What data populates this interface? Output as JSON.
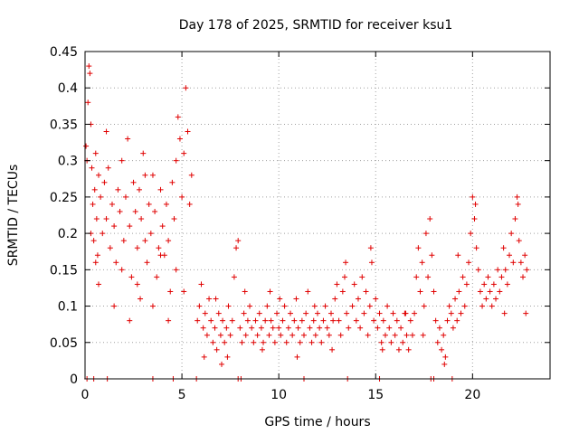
{
  "chart_data": {
    "type": "scatter",
    "title": "Day 178 of 2025, SRMTID for receiver ksu1",
    "xlabel": "GPS time / hours",
    "ylabel": "SRMTID / TECUs",
    "xlim": [
      0,
      24
    ],
    "ylim": [
      0,
      0.45
    ],
    "x_ticks": [
      "0",
      "5",
      "10",
      "15",
      "20"
    ],
    "y_ticks": [
      "0",
      "0.05",
      "0.1",
      "0.15",
      "0.2",
      "0.25",
      "0.3",
      "0.35",
      "0.4",
      "0.45"
    ],
    "grid": true,
    "marker": "+",
    "color": "#e00000",
    "series": [
      {
        "name": "SRMTID",
        "points": [
          [
            0.05,
            0.32
          ],
          [
            0.1,
            0.3
          ],
          [
            0.15,
            0.38
          ],
          [
            0.2,
            0.43
          ],
          [
            0.25,
            0.42
          ],
          [
            0.3,
            0.35
          ],
          [
            0.35,
            0.29
          ],
          [
            0.4,
            0.24
          ],
          [
            0.45,
            0.19
          ],
          [
            0.5,
            0.26
          ],
          [
            0.55,
            0.31
          ],
          [
            0.6,
            0.22
          ],
          [
            0.65,
            0.17
          ],
          [
            0.7,
            0.28
          ],
          [
            0.8,
            0.25
          ],
          [
            0.9,
            0.2
          ],
          [
            1.0,
            0.27
          ],
          [
            1.1,
            0.22
          ],
          [
            1.2,
            0.29
          ],
          [
            1.3,
            0.18
          ],
          [
            1.4,
            0.24
          ],
          [
            1.5,
            0.21
          ],
          [
            1.6,
            0.16
          ],
          [
            1.7,
            0.26
          ],
          [
            1.8,
            0.23
          ],
          [
            1.9,
            0.3
          ],
          [
            2.0,
            0.19
          ],
          [
            2.1,
            0.25
          ],
          [
            2.2,
            0.33
          ],
          [
            2.3,
            0.21
          ],
          [
            2.4,
            0.14
          ],
          [
            2.5,
            0.27
          ],
          [
            2.6,
            0.23
          ],
          [
            2.7,
            0.18
          ],
          [
            2.8,
            0.26
          ],
          [
            2.9,
            0.22
          ],
          [
            3.0,
            0.31
          ],
          [
            3.1,
            0.19
          ],
          [
            3.2,
            0.16
          ],
          [
            3.3,
            0.24
          ],
          [
            3.4,
            0.2
          ],
          [
            3.5,
            0.28
          ],
          [
            3.6,
            0.23
          ],
          [
            3.7,
            0.14
          ],
          [
            3.8,
            0.18
          ],
          [
            3.9,
            0.26
          ],
          [
            4.0,
            0.21
          ],
          [
            4.1,
            0.17
          ],
          [
            4.2,
            0.24
          ],
          [
            4.3,
            0.19
          ],
          [
            4.4,
            0.12
          ],
          [
            4.5,
            0.27
          ],
          [
            4.6,
            0.22
          ],
          [
            4.7,
            0.3
          ],
          [
            4.8,
            0.36
          ],
          [
            4.9,
            0.33
          ],
          [
            5.0,
            0.25
          ],
          [
            5.1,
            0.31
          ],
          [
            5.2,
            0.4
          ],
          [
            5.3,
            0.34
          ],
          [
            5.4,
            0.24
          ],
          [
            5.5,
            0.28
          ],
          [
            0.3,
            0.2
          ],
          [
            0.7,
            0.13
          ],
          [
            1.1,
            0.34
          ],
          [
            1.5,
            0.1
          ],
          [
            1.9,
            0.15
          ],
          [
            2.3,
            0.08
          ],
          [
            2.7,
            0.13
          ],
          [
            3.1,
            0.28
          ],
          [
            3.5,
            0.1
          ],
          [
            3.9,
            0.17
          ],
          [
            4.3,
            0.08
          ],
          [
            4.7,
            0.15
          ],
          [
            5.1,
            0.12
          ],
          [
            0.55,
            0.16
          ],
          [
            2.85,
            0.11
          ],
          [
            5.8,
            0.08
          ],
          [
            5.9,
            0.1
          ],
          [
            6.0,
            0.13
          ],
          [
            6.1,
            0.07
          ],
          [
            6.2,
            0.09
          ],
          [
            6.3,
            0.06
          ],
          [
            6.4,
            0.11
          ],
          [
            6.5,
            0.08
          ],
          [
            6.6,
            0.05
          ],
          [
            6.7,
            0.07
          ],
          [
            6.8,
            0.04
          ],
          [
            6.9,
            0.09
          ],
          [
            7.0,
            0.06
          ],
          [
            7.1,
            0.08
          ],
          [
            7.2,
            0.05
          ],
          [
            7.3,
            0.07
          ],
          [
            7.4,
            0.1
          ],
          [
            7.5,
            0.06
          ],
          [
            7.6,
            0.08
          ],
          [
            7.7,
            0.14
          ],
          [
            7.8,
            0.18
          ],
          [
            7.9,
            0.19
          ],
          [
            8.0,
            0.07
          ],
          [
            8.1,
            0.05
          ],
          [
            8.2,
            0.09
          ],
          [
            8.3,
            0.06
          ],
          [
            8.4,
            0.08
          ],
          [
            8.5,
            0.1
          ],
          [
            8.6,
            0.07
          ],
          [
            8.7,
            0.05
          ],
          [
            8.8,
            0.08
          ],
          [
            8.9,
            0.06
          ],
          [
            9.0,
            0.09
          ],
          [
            9.1,
            0.07
          ],
          [
            9.2,
            0.05
          ],
          [
            9.3,
            0.08
          ],
          [
            9.4,
            0.1
          ],
          [
            9.5,
            0.06
          ],
          [
            9.6,
            0.08
          ],
          [
            9.7,
            0.07
          ],
          [
            9.8,
            0.05
          ],
          [
            9.9,
            0.09
          ],
          [
            10.0,
            0.07
          ],
          [
            10.1,
            0.06
          ],
          [
            10.2,
            0.08
          ],
          [
            10.3,
            0.1
          ],
          [
            10.4,
            0.05
          ],
          [
            10.5,
            0.07
          ],
          [
            10.6,
            0.09
          ],
          [
            10.7,
            0.06
          ],
          [
            10.8,
            0.08
          ],
          [
            10.9,
            0.11
          ],
          [
            11.0,
            0.07
          ],
          [
            11.1,
            0.05
          ],
          [
            11.2,
            0.08
          ],
          [
            11.3,
            0.06
          ],
          [
            11.4,
            0.09
          ],
          [
            11.5,
            0.12
          ],
          [
            11.6,
            0.07
          ],
          [
            11.7,
            0.05
          ],
          [
            11.8,
            0.08
          ],
          [
            11.9,
            0.06
          ],
          [
            12.0,
            0.09
          ],
          [
            12.1,
            0.07
          ],
          [
            12.2,
            0.05
          ],
          [
            12.3,
            0.08
          ],
          [
            12.4,
            0.1
          ],
          [
            12.5,
            0.07
          ],
          [
            12.6,
            0.06
          ],
          [
            12.7,
            0.09
          ],
          [
            12.8,
            0.08
          ],
          [
            12.9,
            0.11
          ],
          [
            13.0,
            0.13
          ],
          [
            13.1,
            0.08
          ],
          [
            13.2,
            0.06
          ],
          [
            13.3,
            0.12
          ],
          [
            13.4,
            0.14
          ],
          [
            13.5,
            0.09
          ],
          [
            13.6,
            0.07
          ],
          [
            6.15,
            0.03
          ],
          [
            6.75,
            0.11
          ],
          [
            7.35,
            0.03
          ],
          [
            8.25,
            0.12
          ],
          [
            9.15,
            0.04
          ],
          [
            10.05,
            0.11
          ],
          [
            10.95,
            0.03
          ],
          [
            11.85,
            0.1
          ],
          [
            12.75,
            0.04
          ],
          [
            13.45,
            0.16
          ],
          [
            9.55,
            0.12
          ],
          [
            7.05,
            0.02
          ],
          [
            13.8,
            0.1
          ],
          [
            13.9,
            0.13
          ],
          [
            14.0,
            0.08
          ],
          [
            14.1,
            0.11
          ],
          [
            14.2,
            0.07
          ],
          [
            14.3,
            0.14
          ],
          [
            14.4,
            0.09
          ],
          [
            14.5,
            0.12
          ],
          [
            14.6,
            0.06
          ],
          [
            14.7,
            0.1
          ],
          [
            14.8,
            0.16
          ],
          [
            14.9,
            0.08
          ],
          [
            15.0,
            0.11
          ],
          [
            15.1,
            0.07
          ],
          [
            15.2,
            0.09
          ],
          [
            15.3,
            0.05
          ],
          [
            15.4,
            0.08
          ],
          [
            15.5,
            0.06
          ],
          [
            15.6,
            0.1
          ],
          [
            15.7,
            0.07
          ],
          [
            15.8,
            0.05
          ],
          [
            15.9,
            0.09
          ],
          [
            16.0,
            0.06
          ],
          [
            16.1,
            0.08
          ],
          [
            16.2,
            0.04
          ],
          [
            16.3,
            0.07
          ],
          [
            16.4,
            0.05
          ],
          [
            16.5,
            0.09
          ],
          [
            16.6,
            0.06
          ],
          [
            16.7,
            0.04
          ],
          [
            16.8,
            0.08
          ],
          [
            16.9,
            0.06
          ],
          [
            17.0,
            0.09
          ],
          [
            17.1,
            0.14
          ],
          [
            17.2,
            0.18
          ],
          [
            17.3,
            0.12
          ],
          [
            17.4,
            0.16
          ],
          [
            17.5,
            0.1
          ],
          [
            17.6,
            0.2
          ],
          [
            17.7,
            0.14
          ],
          [
            17.8,
            0.22
          ],
          [
            17.9,
            0.17
          ],
          [
            18.0,
            0.12
          ],
          [
            18.1,
            0.08
          ],
          [
            18.2,
            0.05
          ],
          [
            18.3,
            0.07
          ],
          [
            18.4,
            0.04
          ],
          [
            18.5,
            0.06
          ],
          [
            18.6,
            0.03
          ],
          [
            18.7,
            0.08
          ],
          [
            18.8,
            0.1
          ],
          [
            18.9,
            0.09
          ],
          [
            19.0,
            0.07
          ],
          [
            19.1,
            0.11
          ],
          [
            19.2,
            0.08
          ],
          [
            19.3,
            0.12
          ],
          [
            19.4,
            0.09
          ],
          [
            19.5,
            0.14
          ],
          [
            19.6,
            0.1
          ],
          [
            19.7,
            0.13
          ],
          [
            19.8,
            0.16
          ],
          [
            19.9,
            0.2
          ],
          [
            20.0,
            0.25
          ],
          [
            20.1,
            0.22
          ],
          [
            20.2,
            0.18
          ],
          [
            20.3,
            0.15
          ],
          [
            20.4,
            0.12
          ],
          [
            20.5,
            0.1
          ],
          [
            20.6,
            0.13
          ],
          [
            20.7,
            0.11
          ],
          [
            20.8,
            0.14
          ],
          [
            20.9,
            0.12
          ],
          [
            21.0,
            0.1
          ],
          [
            21.1,
            0.13
          ],
          [
            21.2,
            0.11
          ],
          [
            21.3,
            0.15
          ],
          [
            21.4,
            0.12
          ],
          [
            21.5,
            0.14
          ],
          [
            21.6,
            0.18
          ],
          [
            21.7,
            0.15
          ],
          [
            21.8,
            0.13
          ],
          [
            21.9,
            0.17
          ],
          [
            22.0,
            0.2
          ],
          [
            22.1,
            0.16
          ],
          [
            22.2,
            0.22
          ],
          [
            22.3,
            0.25
          ],
          [
            22.4,
            0.19
          ],
          [
            22.5,
            0.16
          ],
          [
            22.6,
            0.14
          ],
          [
            22.7,
            0.17
          ],
          [
            22.8,
            0.15
          ],
          [
            14.75,
            0.18
          ],
          [
            15.35,
            0.04
          ],
          [
            16.55,
            0.09
          ],
          [
            17.45,
            0.06
          ],
          [
            18.55,
            0.02
          ],
          [
            19.25,
            0.17
          ],
          [
            20.15,
            0.24
          ],
          [
            21.65,
            0.09
          ],
          [
            22.35,
            0.24
          ],
          [
            22.75,
            0.09
          ]
        ]
      }
    ],
    "zero_points": [
      0.1,
      0.45,
      1.15,
      3.5,
      4.55,
      5.75,
      7.9,
      8.05,
      11.3,
      13.55,
      15.2,
      17.85,
      18.0,
      18.95
    ]
  }
}
